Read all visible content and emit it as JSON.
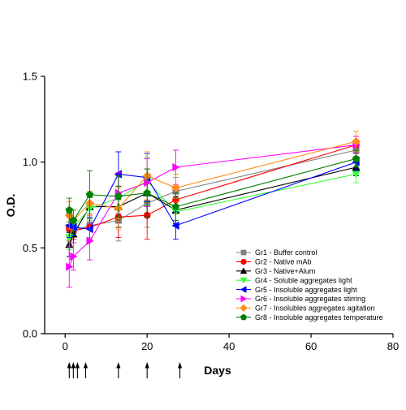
{
  "chart_data": {
    "type": "line",
    "xlabel": "Days",
    "ylabel": "O.D.",
    "xlim": [
      -5,
      80
    ],
    "ylim": [
      0,
      1.5
    ],
    "xticks": [
      0,
      20,
      40,
      60,
      80
    ],
    "yticks": [
      0.0,
      0.5,
      1.0,
      1.5
    ],
    "ytick_labels": [
      "0.0",
      "0.5",
      "1.0",
      "1.5"
    ],
    "grid": false,
    "legend_position": "bottom-right",
    "injection_days": [
      1,
      2,
      3,
      5,
      13,
      20,
      28
    ],
    "x": [
      1,
      2,
      6,
      13,
      20,
      27,
      71
    ],
    "series": [
      {
        "name": "Gr1 - Buffer control",
        "color": "#808080",
        "marker": "square",
        "values": [
          0.62,
          0.6,
          0.63,
          0.66,
          0.76,
          0.83,
          1.07
        ],
        "errors": [
          0.07,
          0.05,
          0.07,
          0.12,
          0.14,
          0.08,
          0.05
        ]
      },
      {
        "name": "Gr2 - Native mAb",
        "color": "#ff0000",
        "marker": "circle",
        "values": [
          0.61,
          0.6,
          0.62,
          0.68,
          0.69,
          0.78,
          1.1
        ],
        "errors": [
          0.07,
          0.05,
          0.07,
          0.12,
          0.14,
          0.08,
          0.05
        ]
      },
      {
        "name": "Gr3 - Native+Alum",
        "color": "#000000",
        "marker": "triangle-up",
        "values": [
          0.52,
          0.58,
          0.74,
          0.74,
          0.82,
          0.72,
          0.97
        ],
        "errors": [
          0.07,
          0.05,
          0.07,
          0.12,
          0.14,
          0.08,
          0.05
        ]
      },
      {
        "name": "Gr4 - Soluble aggregates light",
        "color": "#33ff33",
        "marker": "triangle-down",
        "values": [
          0.56,
          0.62,
          0.73,
          0.79,
          0.89,
          0.71,
          0.93
        ],
        "errors": [
          0.07,
          0.05,
          0.07,
          0.12,
          0.14,
          0.08,
          0.05
        ]
      },
      {
        "name": "Gr5 - Insoluble aggregates light",
        "color": "#0000ff",
        "marker": "triangle-left",
        "values": [
          0.63,
          0.62,
          0.61,
          0.93,
          0.91,
          0.63,
          1.0
        ],
        "errors": [
          0.07,
          0.05,
          0.07,
          0.13,
          0.14,
          0.08,
          0.05
        ]
      },
      {
        "name": "Gr6 - Insoluble aggregates stirring",
        "color": "#ff00ff",
        "marker": "triangle-right",
        "values": [
          0.39,
          0.45,
          0.54,
          0.82,
          0.88,
          0.97,
          1.1
        ],
        "errors": [
          0.12,
          0.08,
          0.11,
          0.12,
          0.14,
          0.1,
          0.05
        ]
      },
      {
        "name": "Gr7 - Insolubles aggregates agitation",
        "color": "#ff8c1a",
        "marker": "diamond",
        "values": [
          0.69,
          0.66,
          0.76,
          0.73,
          0.92,
          0.85,
          1.12
        ],
        "errors": [
          0.08,
          0.06,
          0.07,
          0.12,
          0.14,
          0.08,
          0.06
        ]
      },
      {
        "name": "Gr8 - Insoluble aggregates temperature",
        "color": "#008000",
        "marker": "pentagon",
        "values": [
          0.72,
          0.66,
          0.81,
          0.8,
          0.82,
          0.74,
          1.02
        ],
        "errors": [
          0.07,
          0.06,
          0.14,
          0.12,
          0.14,
          0.08,
          0.05
        ]
      }
    ]
  }
}
